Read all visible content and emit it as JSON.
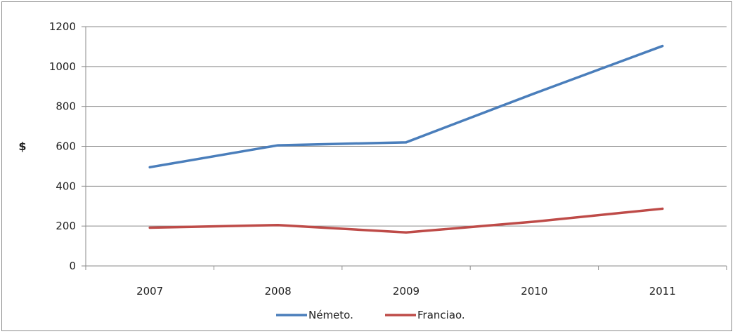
{
  "chart_data": {
    "type": "line",
    "title": "",
    "xlabel": "",
    "ylabel": "$",
    "categories": [
      "2007",
      "2008",
      "2009",
      "2010",
      "2011"
    ],
    "ylim": [
      0,
      1200
    ],
    "yticks": [
      0,
      200,
      400,
      600,
      800,
      1000,
      1200
    ],
    "grid": true,
    "legend_position": "bottom",
    "series": [
      {
        "name": "Németo.",
        "color": "#4a7ebb",
        "values": [
          495,
          605,
          620,
          865,
          1103
        ]
      },
      {
        "name": "Franciao.",
        "color": "#be4b48",
        "values": [
          192,
          205,
          168,
          222,
          287
        ]
      }
    ]
  }
}
